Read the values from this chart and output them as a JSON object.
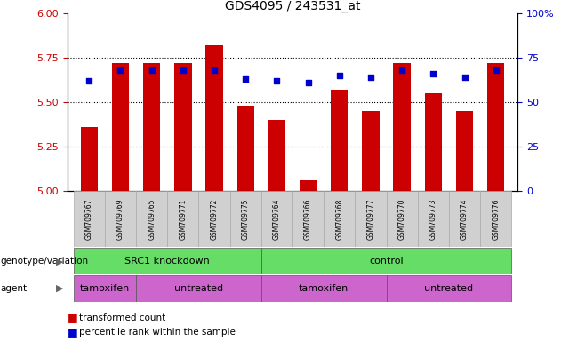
{
  "title": "GDS4095 / 243531_at",
  "samples": [
    "GSM709767",
    "GSM709769",
    "GSM709765",
    "GSM709771",
    "GSM709772",
    "GSM709775",
    "GSM709764",
    "GSM709766",
    "GSM709768",
    "GSM709777",
    "GSM709770",
    "GSM709773",
    "GSM709774",
    "GSM709776"
  ],
  "bar_values": [
    5.36,
    5.72,
    5.72,
    5.72,
    5.82,
    5.48,
    5.4,
    5.06,
    5.57,
    5.45,
    5.72,
    5.55,
    5.45,
    5.72
  ],
  "percentile_values": [
    62,
    68,
    68,
    68,
    68,
    63,
    62,
    61,
    65,
    64,
    68,
    66,
    64,
    68
  ],
  "ylim_left": [
    5.0,
    6.0
  ],
  "ylim_right": [
    0,
    100
  ],
  "yticks_left": [
    5.0,
    5.25,
    5.5,
    5.75,
    6.0
  ],
  "yticks_right": [
    0,
    25,
    50,
    75,
    100
  ],
  "bar_color": "#cc0000",
  "dot_color": "#0000cc",
  "genotype_bg": "#66dd66",
  "agent_bg": "#cc66cc",
  "sample_bg": "#d0d0d0",
  "genotype_groups": [
    {
      "label": "SRC1 knockdown",
      "start": 0,
      "end": 6
    },
    {
      "label": "control",
      "start": 6,
      "end": 14
    }
  ],
  "agent_groups": [
    {
      "label": "tamoxifen",
      "start": 0,
      "end": 2
    },
    {
      "label": "untreated",
      "start": 2,
      "end": 6
    },
    {
      "label": "tamoxifen",
      "start": 6,
      "end": 10
    },
    {
      "label": "untreated",
      "start": 10,
      "end": 14
    }
  ],
  "legend_items": [
    {
      "label": "transformed count",
      "color": "#cc0000"
    },
    {
      "label": "percentile rank within the sample",
      "color": "#0000cc"
    }
  ],
  "left_label": "genotype/variation",
  "agent_label": "agent",
  "left_ylabel_color": "#cc0000",
  "right_ylabel_color": "#0000cc"
}
